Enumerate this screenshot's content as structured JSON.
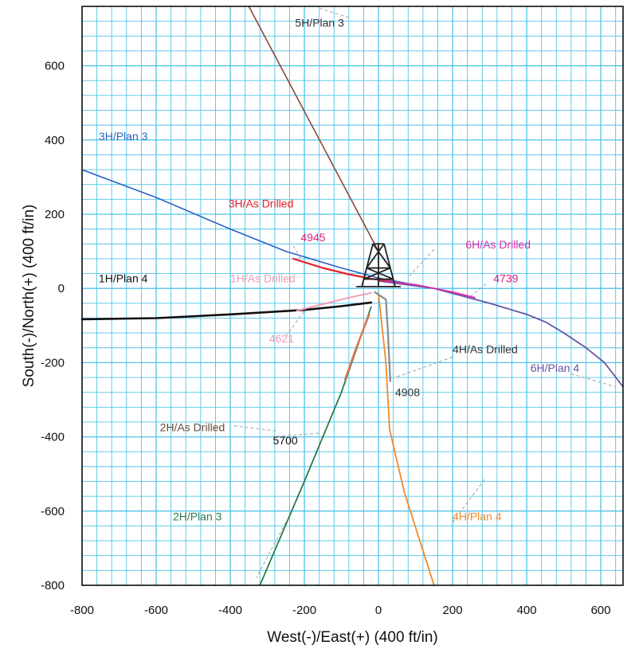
{
  "chart_data": {
    "type": "line",
    "xlabel": "West(-)/East(+) (400 ft/in)",
    "ylabel": "South(-)/North(+) (400 ft/in)",
    "xlim": [
      -800,
      660
    ],
    "ylim": [
      -800,
      760
    ],
    "x_ticks": [
      -800,
      -600,
      -400,
      -200,
      0,
      200,
      400,
      600
    ],
    "y_ticks": [
      -800,
      -600,
      -400,
      -200,
      0,
      200,
      400,
      600
    ],
    "grid": true,
    "colors": {
      "grid": "#4fc3e8",
      "frame": "#111111",
      "rig": "#222222",
      "leader": "#a0a0a0"
    },
    "series": [
      {
        "name": "5H/Plan 3",
        "color": "#8b4a3a",
        "width": 1.6,
        "points": [
          [
            -350,
            760
          ],
          [
            0,
            100
          ]
        ]
      },
      {
        "name": "3H/Plan 3",
        "color": "#2a63c6",
        "width": 1.6,
        "points": [
          [
            -800,
            320
          ],
          [
            -600,
            245
          ],
          [
            -400,
            160
          ],
          [
            -250,
            100
          ],
          [
            -100,
            55
          ],
          [
            0,
            28
          ],
          [
            150,
            0
          ],
          [
            300,
            -40
          ],
          [
            400,
            -70
          ],
          [
            450,
            -90
          ],
          [
            500,
            -120
          ],
          [
            560,
            -160
          ],
          [
            610,
            -200
          ],
          [
            660,
            -265
          ]
        ]
      },
      {
        "name": "6H/Plan 4",
        "color": "#6f52a3",
        "width": 1.6,
        "points": [
          [
            0,
            20
          ],
          [
            150,
            0
          ],
          [
            300,
            -40
          ],
          [
            400,
            -70
          ],
          [
            450,
            -90
          ],
          [
            500,
            -120
          ],
          [
            560,
            -160
          ],
          [
            610,
            -200
          ],
          [
            660,
            -265
          ]
        ]
      },
      {
        "name": "3H/As Drilled",
        "color": "#e8202a",
        "width": 2.2,
        "points": [
          [
            -230,
            80
          ],
          [
            -150,
            55
          ],
          [
            -80,
            38
          ],
          [
            -20,
            26
          ],
          [
            30,
            20
          ]
        ]
      },
      {
        "name": "6H/As Drilled",
        "color": "#d930a8",
        "width": 1.8,
        "points": [
          [
            20,
            20
          ],
          [
            100,
            10
          ],
          [
            200,
            -10
          ],
          [
            260,
            -25
          ]
        ]
      },
      {
        "name": "1H/Plan 4",
        "color": "#111111",
        "width": 2.6,
        "points": [
          [
            -800,
            -83
          ],
          [
            -600,
            -80
          ],
          [
            -400,
            -70
          ],
          [
            -200,
            -58
          ],
          [
            -100,
            -48
          ],
          [
            -20,
            -38
          ]
        ]
      },
      {
        "name": "1H/As Drilled",
        "color": "#f29ab4",
        "width": 2.0,
        "points": [
          [
            -20,
            -12
          ],
          [
            -80,
            -25
          ],
          [
            -160,
            -45
          ],
          [
            -220,
            -60
          ]
        ]
      },
      {
        "name": "2H/Plan 3",
        "color": "#2c7a4b",
        "width": 1.8,
        "points": [
          [
            -320,
            -800
          ],
          [
            -200,
            -520
          ],
          [
            -100,
            -280
          ],
          [
            -20,
            -50
          ]
        ]
      },
      {
        "name": "2H/As Drilled",
        "color": "#d8754a",
        "width": 2.4,
        "points": [
          [
            -25,
            -70
          ],
          [
            -60,
            -160
          ],
          [
            -90,
            -245
          ]
        ]
      },
      {
        "name": "4H/Plan 4",
        "color": "#f08a2a",
        "width": 1.8,
        "points": [
          [
            0,
            -15
          ],
          [
            20,
            -200
          ],
          [
            30,
            -380
          ],
          [
            70,
            -550
          ],
          [
            150,
            -800
          ]
        ]
      },
      {
        "name": "4H/As Drilled",
        "color": "#8a8a8a",
        "width": 2.2,
        "points": [
          [
            -10,
            -10
          ],
          [
            20,
            -30
          ],
          [
            25,
            -110
          ],
          [
            32,
            -250
          ]
        ]
      }
    ],
    "annotations": [
      {
        "text": "5H/Plan 3",
        "x": -225,
        "y": 705,
        "color": "#333333"
      },
      {
        "text": "3H/Plan 3",
        "x": -755,
        "y": 400,
        "color": "#2a63c6"
      },
      {
        "text": "3H/As Drilled",
        "x": -405,
        "y": 218,
        "color": "#e0202a"
      },
      {
        "text": "4945",
        "x": -210,
        "y": 127,
        "color": "#e0207a"
      },
      {
        "text": "6H/As Drilled",
        "x": 235,
        "y": 108,
        "color": "#d930a8"
      },
      {
        "text": "1H/Plan 4",
        "x": -755,
        "y": 17,
        "color": "#111111"
      },
      {
        "text": "1H/As Drilled",
        "x": -400,
        "y": 17,
        "color": "#f29ab4"
      },
      {
        "text": "4739",
        "x": 310,
        "y": 17,
        "color": "#e0207a"
      },
      {
        "text": "4621",
        "x": -295,
        "y": -145,
        "color": "#f29ab4"
      },
      {
        "text": "4H/As Drilled",
        "x": 200,
        "y": -175,
        "color": "#333333"
      },
      {
        "text": "6H/Plan 4",
        "x": 410,
        "y": -225,
        "color": "#6f52a3"
      },
      {
        "text": "4908",
        "x": 45,
        "y": -290,
        "color": "#333333"
      },
      {
        "text": "2H/As Drilled",
        "x": -590,
        "y": -385,
        "color": "#6b4a36"
      },
      {
        "text": "5700",
        "x": -285,
        "y": -420,
        "color": "#111111"
      },
      {
        "text": "2H/Plan 3",
        "x": -555,
        "y": -625,
        "color": "#2c7a4b"
      },
      {
        "text": "4H/Plan 4",
        "x": 200,
        "y": -625,
        "color": "#f08a2a"
      }
    ]
  }
}
